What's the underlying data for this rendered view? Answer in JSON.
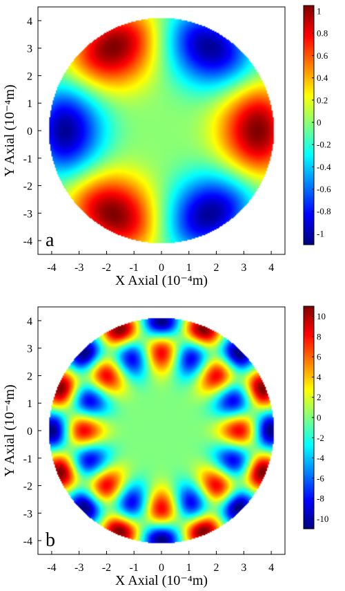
{
  "chart_data": [
    {
      "type": "heatmap",
      "panel_label": "a",
      "xlabel": "X Axial (10⁻⁴m)",
      "ylabel": "Y Axial (10⁻⁴m)",
      "xlim": [
        -4.5,
        4.5
      ],
      "ylim": [
        -4.5,
        4.5
      ],
      "x_ticks": [
        "-4",
        "-3",
        "-2",
        "-1",
        "0",
        "1",
        "2",
        "3",
        "4"
      ],
      "y_ticks": [
        "4",
        "3",
        "2",
        "1",
        "0",
        "-1",
        "-2",
        "-3",
        "-4"
      ],
      "domain_radius": 4.1,
      "field_pattern": {
        "radial_wavenumber": 1.35,
        "angular_order": 3,
        "radial_exponent": 1.4
      },
      "colorbar": {
        "range": [
          -1.1,
          1.05
        ],
        "ticks": [
          "1",
          "0.8",
          "0.6",
          "0.4",
          "0.2",
          "0",
          "-0.2",
          "-0.4",
          "-0.6",
          "-0.8",
          "-1"
        ],
        "colormap": "jet"
      },
      "grid": false
    },
    {
      "type": "heatmap",
      "panel_label": "b",
      "xlabel": "X Axial (10⁻⁴m)",
      "ylabel": "Y Axial (10⁻⁴m)",
      "xlim": [
        -4.5,
        4.5
      ],
      "ylim": [
        -4.5,
        4.5
      ],
      "x_ticks": [
        "-4",
        "-3",
        "-2",
        "-1",
        "0",
        "1",
        "2",
        "3",
        "4"
      ],
      "y_ticks": [
        "4",
        "3",
        "2",
        "1",
        "0",
        "-1",
        "-2",
        "-3",
        "-4"
      ],
      "domain_radius": 4.1,
      "field_pattern": {
        "radial_wavenumber": 3.6,
        "angular_order": 8,
        "radial_exponent": 1.7
      },
      "colorbar": {
        "range": [
          -11,
          11
        ],
        "ticks": [
          "10",
          "8",
          "6",
          "4",
          "2",
          "0",
          "-2",
          "-4",
          "-6",
          "-8",
          "-10"
        ],
        "colormap": "jet"
      },
      "grid": false
    }
  ]
}
